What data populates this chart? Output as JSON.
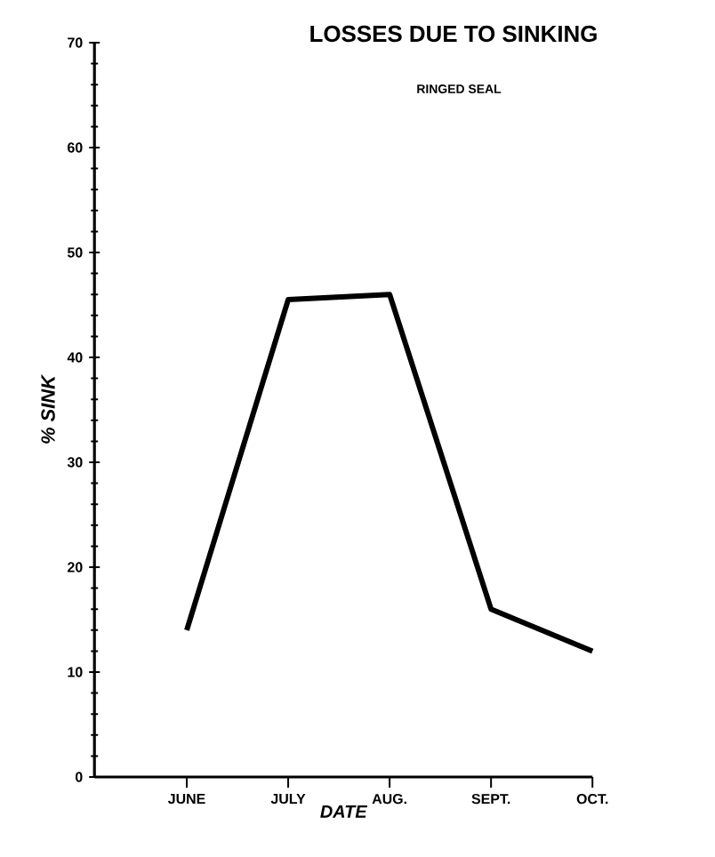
{
  "chart_data": {
    "type": "line",
    "title": "LOSSES DUE TO SINKING",
    "subtitle": "RINGED SEAL",
    "xlabel": "DATE",
    "ylabel": "% SINK",
    "categories": [
      "JUNE",
      "JULY",
      "AUG.",
      "SEPT.",
      "OCT."
    ],
    "values": [
      14,
      45.5,
      46,
      16,
      12
    ],
    "color": "#000000",
    "ylim": [
      0,
      70
    ],
    "yticks": [
      0,
      10,
      20,
      30,
      40,
      50,
      60,
      70
    ]
  }
}
